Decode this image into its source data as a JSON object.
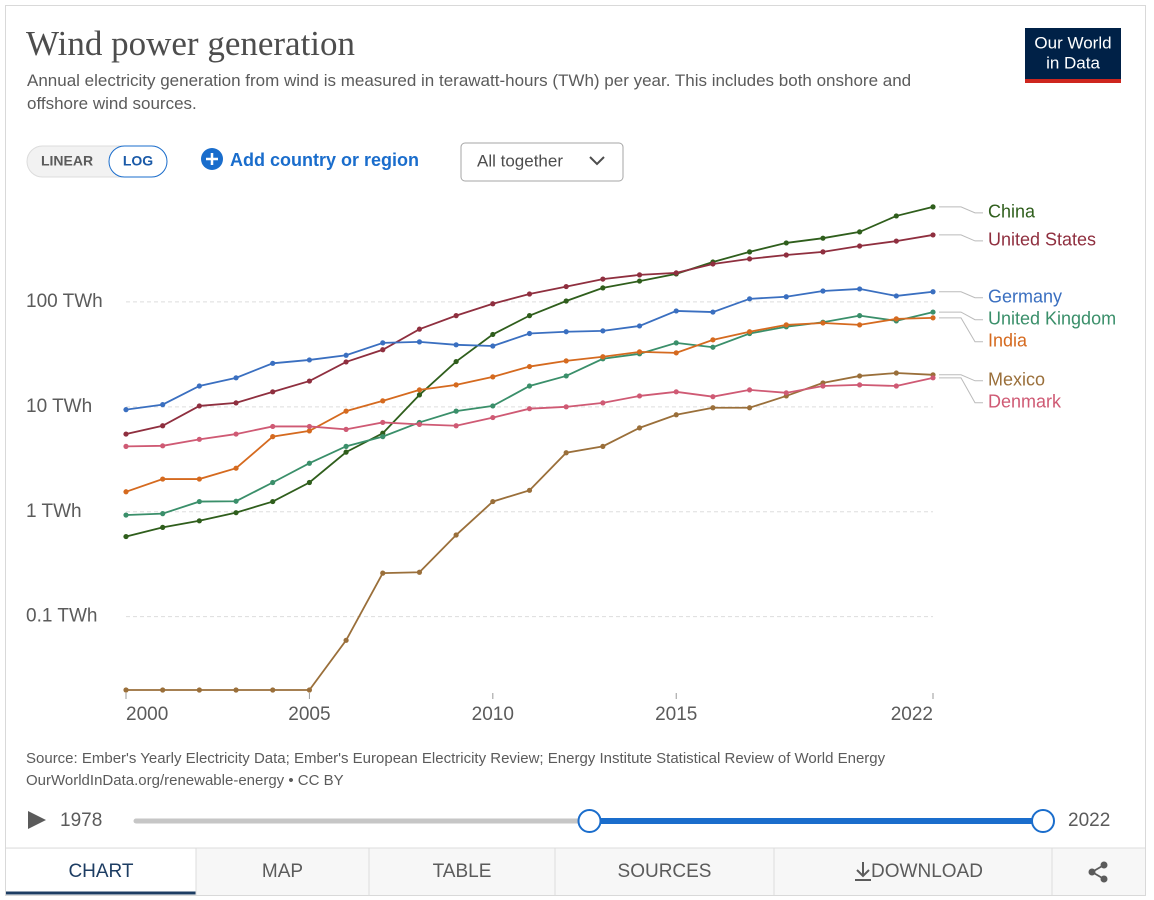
{
  "chart_data": {
    "type": "line",
    "title": "Wind power generation",
    "subtitle": "Annual electricity generation from wind is measured in terawatt-hours (TWh) per year. This includes both onshore and offshore wind sources.",
    "log_scale": true,
    "grid": true,
    "x": [
      2000,
      2001,
      2002,
      2003,
      2004,
      2005,
      2006,
      2007,
      2008,
      2009,
      2010,
      2011,
      2012,
      2013,
      2014,
      2015,
      2016,
      2017,
      2018,
      2019,
      2020,
      2021,
      2022
    ],
    "xlim": [
      2000,
      2022
    ],
    "xticks": [
      2000,
      2005,
      2010,
      2015,
      2022
    ],
    "ylim": [
      0.02,
      1000
    ],
    "yticks": [
      {
        "value": 0.1,
        "label": "0.1 TWh"
      },
      {
        "value": 1,
        "label": "1 TWh"
      },
      {
        "value": 10,
        "label": "10 TWh"
      },
      {
        "value": 100,
        "label": "100 TWh"
      }
    ],
    "series": [
      {
        "name": "China",
        "color": "#2f5e1c",
        "values": [
          0.58,
          0.71,
          0.82,
          0.98,
          1.25,
          1.9,
          3.7,
          5.6,
          13,
          27,
          49,
          74,
          102,
          136,
          158,
          185,
          240,
          300,
          365,
          405,
          465,
          660,
          805
        ]
      },
      {
        "name": "United States",
        "color": "#8f2f3f",
        "values": [
          5.5,
          6.6,
          10.2,
          10.9,
          13.9,
          17.6,
          26.8,
          35,
          55,
          74,
          96,
          119,
          140,
          165,
          181,
          189,
          230,
          257,
          280,
          300,
          341,
          380,
          435
        ]
      },
      {
        "name": "Germany",
        "color": "#3a6fc0",
        "values": [
          9.4,
          10.5,
          15.8,
          18.9,
          26,
          28,
          31,
          40.7,
          41.6,
          39,
          38,
          50,
          52,
          53,
          59,
          82,
          80,
          107,
          112,
          127,
          133,
          114,
          125
        ]
      },
      {
        "name": "United Kingdom",
        "color": "#3a8f6a",
        "values": [
          0.93,
          0.96,
          1.25,
          1.26,
          1.9,
          2.9,
          4.2,
          5.2,
          7.1,
          9.1,
          10.2,
          15.8,
          19.7,
          28.7,
          32,
          40.7,
          37,
          50,
          58,
          64,
          74,
          66,
          80
        ]
      },
      {
        "name": "India",
        "color": "#d56a1f",
        "values": [
          1.55,
          2.05,
          2.05,
          2.6,
          5.2,
          5.9,
          9.1,
          11.4,
          14.5,
          16.2,
          19.3,
          24.2,
          27.4,
          30,
          33.4,
          32.7,
          43.5,
          52,
          60.4,
          63,
          60.4,
          68.9,
          70.5
        ]
      },
      {
        "name": "Mexico",
        "color": "#9a6f3a",
        "values": [
          0.02,
          0.02,
          0.02,
          0.02,
          0.02,
          0.02,
          0.0595,
          0.26,
          0.265,
          0.6,
          1.25,
          1.6,
          3.65,
          4.2,
          6.3,
          8.4,
          9.8,
          9.8,
          12.7,
          16.9,
          19.7,
          21,
          20.2
        ]
      },
      {
        "name": "Denmark",
        "color": "#cf5a74",
        "values": [
          4.2,
          4.25,
          4.9,
          5.5,
          6.5,
          6.5,
          6.1,
          7.1,
          6.8,
          6.6,
          7.9,
          9.6,
          10,
          10.9,
          12.7,
          13.9,
          12.5,
          14.5,
          13.6,
          15.8,
          16.2,
          15.8,
          18.9
        ]
      }
    ]
  },
  "logo": [
    "Our World",
    "in Data"
  ],
  "controls": {
    "linear": "LINEAR",
    "log": "LOG",
    "add": "Add country or region",
    "dropdown": "All together"
  },
  "footer": {
    "source": "Source: Ember's Yearly Electricity Data; Ember's European Electricity Review; Energy Institute Statistical Review of World Energy",
    "url": "OurWorldInData.org/renewable-energy • CC BY"
  },
  "timeline": {
    "min": 1978,
    "max": 2022,
    "range": [
      2000,
      2022
    ]
  },
  "tabs": [
    "CHART",
    "MAP",
    "TABLE",
    "SOURCES",
    "DOWNLOAD"
  ]
}
